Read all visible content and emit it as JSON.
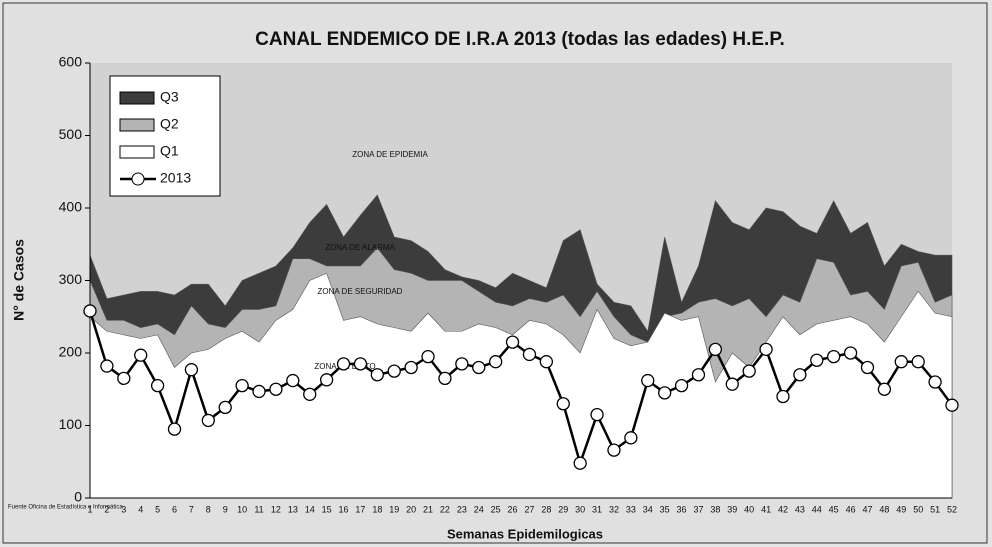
{
  "chart_data": {
    "type": "area",
    "title": "CANAL ENDEMICO DE I.R.A 2013 (todas las edades) H.E.P.",
    "xlabel": "Semanas Epidemilogicas",
    "ylabel": "N° de Casos",
    "source": "Fuente Oficina de Estadística e Informática",
    "annotations": [
      "ZONA DE EPIDEMIA",
      "ZONA DE ALARMA",
      "ZONA DE SEGURIDAD",
      "ZONA DE EXITO"
    ],
    "categories": [
      1,
      2,
      3,
      4,
      5,
      6,
      7,
      8,
      9,
      10,
      11,
      12,
      13,
      14,
      15,
      16,
      17,
      18,
      19,
      20,
      21,
      22,
      23,
      24,
      25,
      26,
      27,
      28,
      29,
      30,
      31,
      32,
      33,
      34,
      35,
      36,
      37,
      38,
      39,
      40,
      41,
      42,
      43,
      44,
      45,
      46,
      47,
      48,
      49,
      50,
      51,
      52
    ],
    "ylim": [
      0,
      600
    ],
    "yticks": [
      0,
      100,
      200,
      300,
      400,
      500,
      600
    ],
    "legend": "upper left",
    "series": [
      {
        "name": "Q3",
        "color": "#3c3c3c",
        "values": [
          335,
          275,
          280,
          285,
          285,
          280,
          295,
          295,
          265,
          300,
          310,
          320,
          345,
          380,
          405,
          360,
          390,
          418,
          360,
          355,
          340,
          315,
          305,
          300,
          290,
          310,
          300,
          290,
          355,
          370,
          295,
          270,
          265,
          230,
          360,
          270,
          320,
          410,
          380,
          370,
          400,
          395,
          375,
          365,
          410,
          365,
          380,
          320,
          350,
          340,
          335,
          335
        ]
      },
      {
        "name": "Q2",
        "color": "#b4b4b4",
        "values": [
          300,
          245,
          245,
          235,
          240,
          225,
          265,
          240,
          235,
          260,
          260,
          265,
          330,
          330,
          320,
          320,
          320,
          345,
          315,
          310,
          300,
          300,
          300,
          285,
          270,
          265,
          275,
          270,
          280,
          250,
          285,
          250,
          225,
          215,
          250,
          255,
          270,
          275,
          265,
          275,
          250,
          280,
          270,
          330,
          325,
          280,
          285,
          260,
          320,
          325,
          270,
          280
        ]
      },
      {
        "name": "Q1",
        "color": "#ffffff",
        "values": [
          250,
          230,
          225,
          220,
          225,
          180,
          200,
          205,
          220,
          230,
          215,
          245,
          260,
          300,
          310,
          245,
          250,
          240,
          235,
          230,
          255,
          230,
          230,
          240,
          235,
          225,
          245,
          240,
          225,
          200,
          260,
          220,
          210,
          215,
          255,
          245,
          250,
          160,
          200,
          180,
          215,
          250,
          225,
          240,
          245,
          250,
          240,
          215,
          250,
          285,
          255,
          250
        ]
      },
      {
        "name": "2013",
        "color": "#000000",
        "values": [
          258,
          182,
          165,
          197,
          155,
          95,
          177,
          107,
          125,
          155,
          147,
          150,
          162,
          143,
          163,
          185,
          185,
          170,
          175,
          180,
          195,
          165,
          185,
          180,
          188,
          215,
          198,
          188,
          130,
          48,
          115,
          66,
          83,
          162,
          145,
          155,
          170,
          205,
          157,
          175,
          205,
          140,
          170,
          190,
          195,
          200,
          180,
          150,
          188,
          188,
          160,
          128
        ]
      }
    ]
  }
}
